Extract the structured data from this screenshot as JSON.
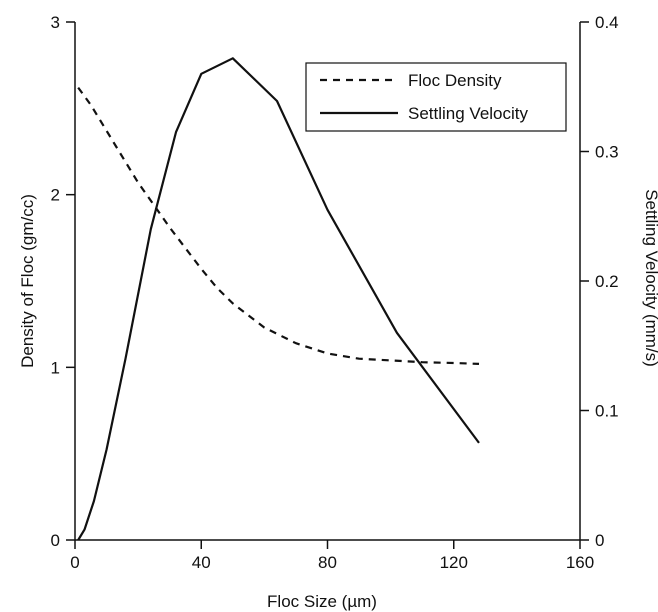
{
  "chart_data": {
    "type": "line",
    "x_axis": {
      "label": "Floc Size (µm)",
      "range": [
        0,
        160
      ],
      "ticks": [
        0,
        40,
        80,
        120,
        160
      ],
      "tick_labels": [
        "0",
        "40",
        "80",
        "120",
        "160"
      ]
    },
    "y_left": {
      "label": "Density of Floc (gm/cc)",
      "range": [
        0,
        3
      ],
      "ticks": [
        0,
        1,
        2,
        3
      ],
      "tick_labels": [
        "0",
        "1",
        "2",
        "3"
      ]
    },
    "y_right": {
      "label": "Settling Velocity (mm/s)",
      "range": [
        0,
        0.4
      ],
      "ticks": [
        0,
        0.1,
        0.2,
        0.3,
        0.4
      ],
      "tick_labels": [
        "0",
        "0.1",
        "0.2",
        "0.3",
        "0.4"
      ]
    },
    "series": [
      {
        "name": "Floc Density",
        "axis": "left",
        "style": "dashed",
        "color": "#111111",
        "x": [
          1,
          5,
          10,
          15,
          20,
          25,
          30,
          35,
          40,
          45,
          50,
          60,
          70,
          80,
          90,
          100,
          110,
          120,
          128
        ],
        "y": [
          2.62,
          2.52,
          2.37,
          2.22,
          2.07,
          1.94,
          1.81,
          1.69,
          1.57,
          1.46,
          1.37,
          1.23,
          1.14,
          1.08,
          1.05,
          1.04,
          1.03,
          1.025,
          1.02
        ]
      },
      {
        "name": "Settling Velocity",
        "axis": "right",
        "style": "solid",
        "color": "#111111",
        "x": [
          1,
          3,
          6,
          10,
          16,
          24,
          32,
          40,
          50,
          64,
          80,
          102,
          128
        ],
        "y": [
          0.0,
          0.008,
          0.03,
          0.07,
          0.14,
          0.24,
          0.315,
          0.36,
          0.372,
          0.339,
          0.255,
          0.16,
          0.075
        ]
      }
    ],
    "legend": {
      "position": "top-right",
      "entries": [
        "Floc Density",
        "Settling Velocity"
      ]
    },
    "grid": false
  }
}
